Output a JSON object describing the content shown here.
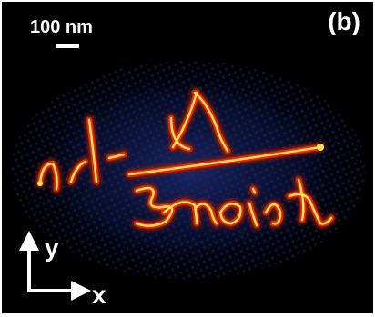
{
  "figure": {
    "scale_bar_label": "100 nm",
    "panel_label": "(b)",
    "axis_y_label": "y",
    "axis_x_label": "x"
  },
  "colors": {
    "background": "#000000",
    "ripple": "#101a48",
    "glow": "#7a1a0a",
    "hot": "#ff2a10",
    "core": "#ffe650",
    "annotation": "#ffffff"
  }
}
